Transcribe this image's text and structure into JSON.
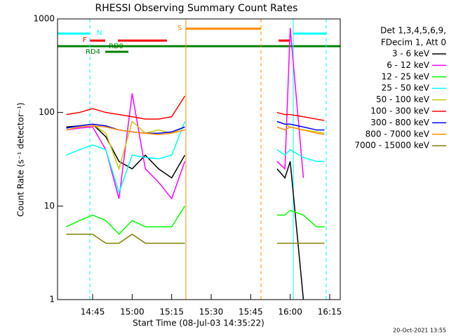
{
  "chart_data": {
    "type": "line",
    "title": "RHESSI Observing Summary Count Rates",
    "x_label": "Start Time (08-Jul-03 14:35:22)",
    "y_label": "Count Rate (s⁻¹ detector⁻¹)",
    "notes": [
      "Det 1,3,4,5,6,9,",
      "FDecim 1, Att 0"
    ],
    "footer": "20-Oct-2021 13:55",
    "flags": [
      "N",
      "F",
      "RD0",
      "RD4",
      "S"
    ],
    "log_y": true,
    "xlim": [
      "14:31:40",
      "16:19:00"
    ],
    "xticks": [
      "14:45",
      "15:00",
      "15:15",
      "15:30",
      "15:45",
      "16:00",
      "16:15"
    ],
    "ylim": [
      1,
      1000
    ],
    "yticks": [
      1,
      10,
      100,
      1000
    ],
    "x": [
      "14:35",
      "14:40",
      "14:45",
      "14:50",
      "14:55",
      "15:00",
      "15:05",
      "15:10",
      "15:15",
      "15:20",
      "15:35",
      "15:55",
      "15:58",
      "16:00",
      "16:05",
      "16:10",
      "16:13"
    ],
    "series": [
      {
        "name": "3 - 6 keV",
        "color": "#000000",
        "values": [
          70,
          72,
          75,
          55,
          30,
          25,
          35,
          25,
          20,
          35,
          null,
          25,
          20,
          30,
          1,
          null,
          null
        ]
      },
      {
        "name": "6 - 12 keV",
        "color": "#ff00ff",
        "values": [
          65,
          68,
          70,
          40,
          12,
          160,
          25,
          18,
          12,
          30,
          null,
          30,
          25,
          800,
          20,
          null,
          null
        ]
      },
      {
        "name": "12 - 25 keV",
        "color": "#00ff00",
        "values": [
          6,
          7,
          8,
          7,
          5,
          7,
          6,
          6,
          6,
          10,
          null,
          8,
          8,
          9,
          8,
          6,
          6
        ]
      },
      {
        "name": "25 - 50 keV",
        "color": "#00ffff",
        "values": [
          35,
          40,
          45,
          40,
          14,
          35,
          33,
          32,
          35,
          80,
          null,
          40,
          35,
          40,
          33,
          30,
          30
        ]
      },
      {
        "name": "50 - 100 keV",
        "color": "#c8c800",
        "values": [
          68,
          72,
          75,
          60,
          25,
          80,
          60,
          65,
          60,
          70,
          null,
          80,
          75,
          70,
          65,
          62,
          60
        ]
      },
      {
        "name": "100 - 300 keV",
        "color": "#ff0000",
        "values": [
          95,
          100,
          110,
          100,
          95,
          90,
          85,
          85,
          90,
          150,
          null,
          100,
          95,
          95,
          90,
          85,
          82
        ]
      },
      {
        "name": "300 - 800 keV",
        "color": "#0000ff",
        "values": [
          68,
          72,
          75,
          72,
          65,
          62,
          60,
          60,
          62,
          70,
          null,
          80,
          75,
          75,
          70,
          65,
          65
        ]
      },
      {
        "name": "800 - 7000 keV",
        "color": "#ff8c00",
        "values": [
          65,
          70,
          72,
          70,
          65,
          62,
          60,
          58,
          60,
          65,
          null,
          70,
          65,
          70,
          65,
          60,
          58
        ]
      },
      {
        "name": "7000 - 15000 keV",
        "color": "#808000",
        "values": [
          5,
          5,
          5,
          4,
          4,
          5,
          4,
          4,
          4,
          4,
          null,
          4,
          4,
          4,
          4,
          4,
          4
        ]
      }
    ]
  }
}
